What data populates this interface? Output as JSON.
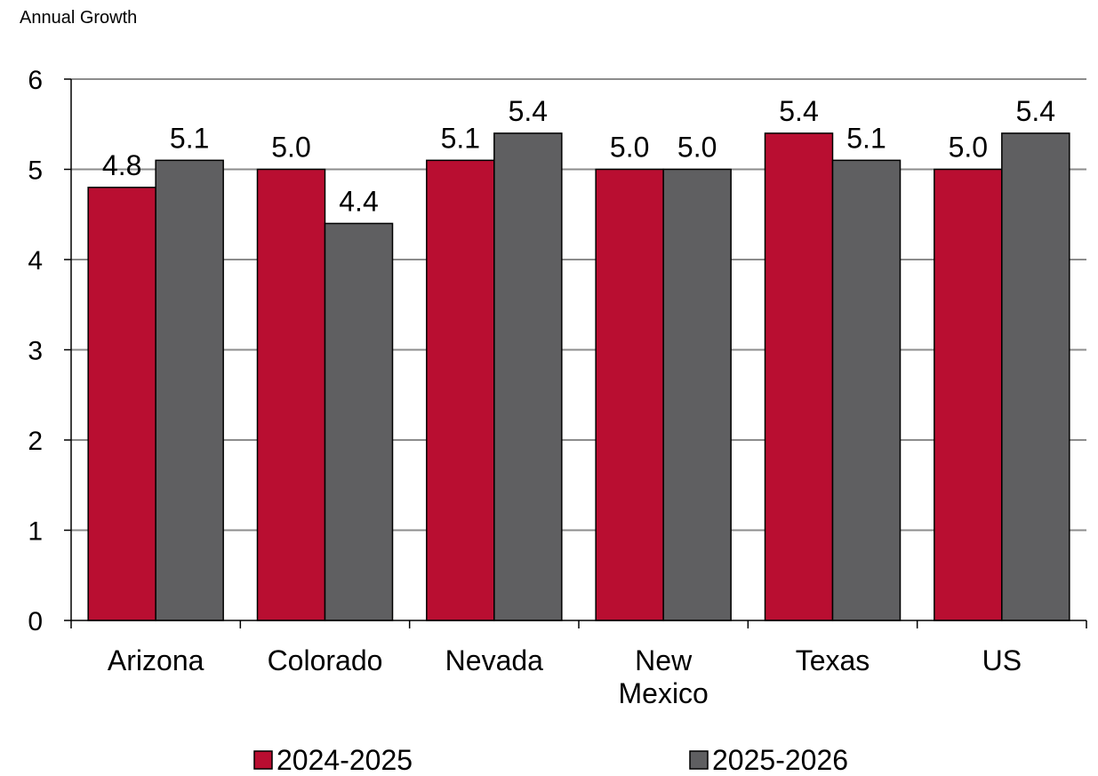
{
  "chart_data": {
    "type": "bar",
    "title": "Annual Growth",
    "xlabel": "",
    "ylabel": "",
    "ylim": [
      0,
      6
    ],
    "yticks": [
      0,
      1,
      2,
      3,
      4,
      5,
      6
    ],
    "grid": true,
    "legend_position": "bottom",
    "categories": [
      "Arizona",
      "Colorado",
      "Nevada",
      "New Mexico",
      "Texas",
      "US"
    ],
    "series": [
      {
        "name": "2024-2025",
        "color": "#b90e31",
        "values": [
          4.8,
          5.0,
          5.1,
          5.0,
          5.4,
          5.0
        ]
      },
      {
        "name": "2025-2026",
        "color": "#5f5f61",
        "values": [
          5.1,
          4.4,
          5.4,
          5.0,
          5.1,
          5.4
        ]
      }
    ]
  }
}
